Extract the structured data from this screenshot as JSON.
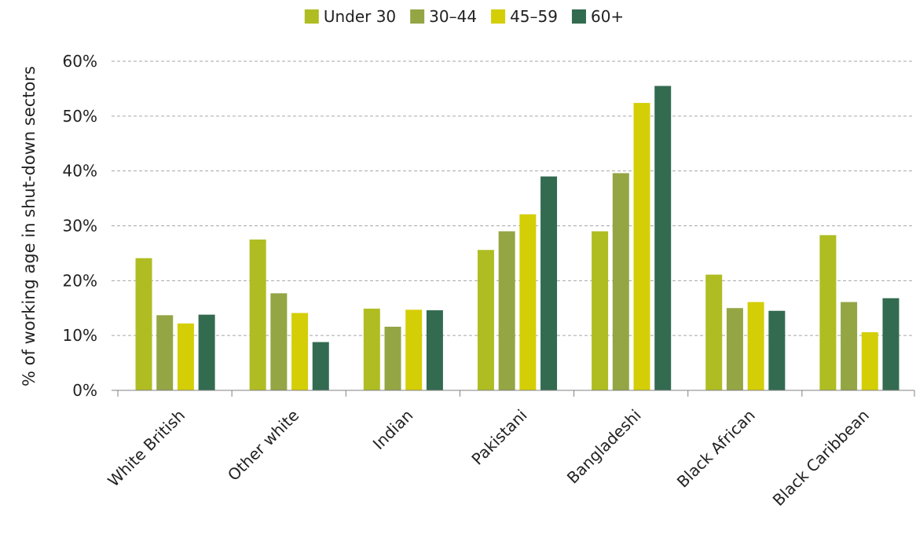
{
  "chart_data": {
    "type": "bar",
    "title": "",
    "xlabel": "",
    "ylabel": "% of working age in shut-down sectors",
    "ylim": [
      0,
      60
    ],
    "yticks": [
      "0%",
      "10%",
      "20%",
      "30%",
      "40%",
      "50%",
      "60%"
    ],
    "grid": true,
    "legend_position": "top",
    "categories": [
      "White British",
      "Other white",
      "Indian",
      "Pakistani",
      "Bangladeshi",
      "Black African",
      "Black Caribbean"
    ],
    "series": [
      {
        "name": "Under 30",
        "color": "#afbd22",
        "values": [
          24.1,
          27.5,
          14.9,
          25.6,
          29.0,
          21.1,
          28.3
        ]
      },
      {
        "name": "30–44",
        "color": "#94a544",
        "values": [
          13.7,
          17.7,
          11.6,
          29.0,
          39.6,
          15.0,
          16.1
        ]
      },
      {
        "name": "45–59",
        "color": "#d4ce06",
        "values": [
          12.2,
          14.1,
          14.7,
          32.1,
          52.4,
          16.1,
          10.6
        ]
      },
      {
        "name": "60+",
        "color": "#336b51",
        "values": [
          13.8,
          8.8,
          14.6,
          39.0,
          55.5,
          14.5,
          16.8
        ]
      }
    ]
  }
}
